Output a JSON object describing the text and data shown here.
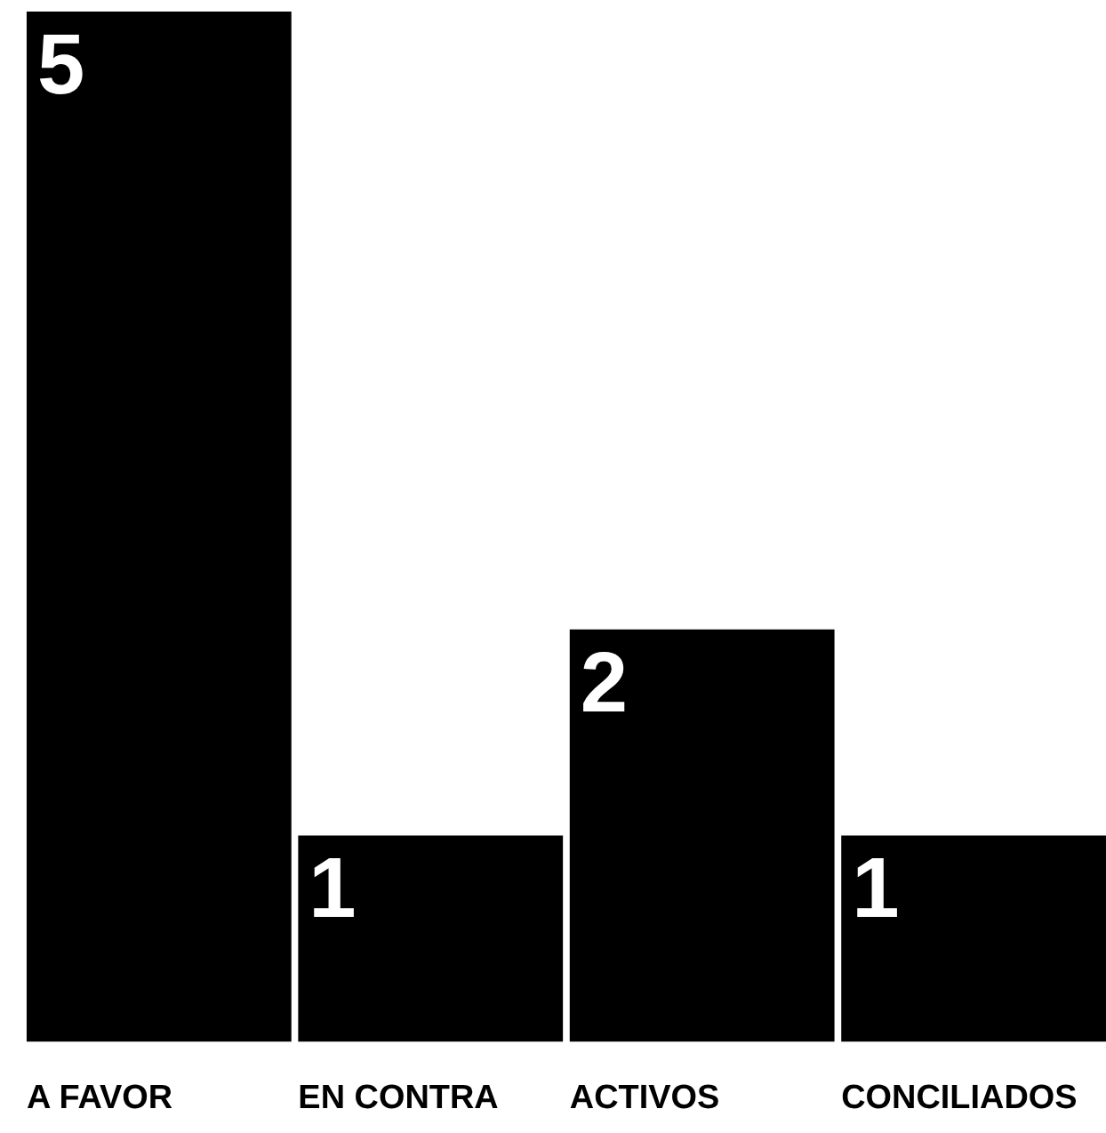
{
  "chart_data": {
    "type": "bar",
    "categories": [
      "A FAVOR",
      "EN CONTRA",
      "ACTIVOS",
      "CONCILIADOS"
    ],
    "values": [
      5,
      1,
      2,
      1
    ],
    "color": "#000000",
    "data_labels": true
  }
}
